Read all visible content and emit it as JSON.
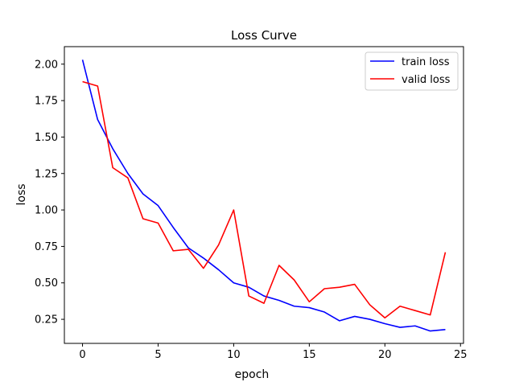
{
  "chart_data": {
    "type": "line",
    "title": "Loss Curve",
    "xlabel": "epoch",
    "ylabel": "loss",
    "xlim": [
      -1.2,
      25.2
    ],
    "ylim": [
      0.085,
      2.12
    ],
    "x_ticks": [
      0,
      5,
      10,
      15,
      20,
      25
    ],
    "y_ticks": [
      0.25,
      0.5,
      0.75,
      1.0,
      1.25,
      1.5,
      1.75,
      2.0
    ],
    "grid": false,
    "legend_position": "top-right",
    "x": [
      0,
      1,
      2,
      3,
      4,
      5,
      6,
      7,
      8,
      9,
      10,
      11,
      12,
      13,
      14,
      15,
      16,
      17,
      18,
      19,
      20,
      21,
      22,
      23,
      24
    ],
    "series": [
      {
        "name": "train loss",
        "color": "#0000ff",
        "values": [
          2.03,
          1.62,
          1.42,
          1.25,
          1.11,
          1.03,
          0.88,
          0.74,
          0.67,
          0.59,
          0.5,
          0.47,
          0.41,
          0.38,
          0.34,
          0.33,
          0.3,
          0.24,
          0.27,
          0.25,
          0.22,
          0.195,
          0.205,
          0.17,
          0.18
        ]
      },
      {
        "name": "valid loss",
        "color": "#ff0000",
        "values": [
          1.88,
          1.85,
          1.29,
          1.22,
          0.94,
          0.91,
          0.72,
          0.73,
          0.6,
          0.76,
          1.0,
          0.41,
          0.36,
          0.62,
          0.52,
          0.37,
          0.46,
          0.47,
          0.49,
          0.35,
          0.26,
          0.34,
          0.31,
          0.28,
          0.71
        ]
      }
    ]
  }
}
